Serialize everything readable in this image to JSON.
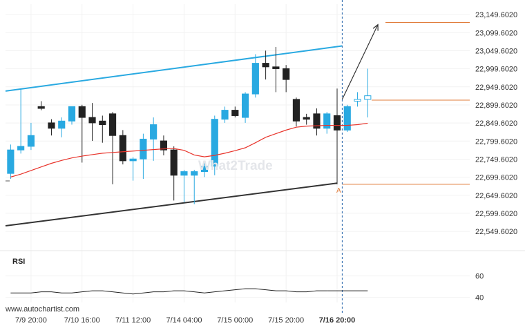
{
  "footer": {
    "source_text": "www.autochartist.com"
  },
  "watermark": {
    "text": "What2Trade"
  },
  "pattern_point_label": "A",
  "rsi_panel": {
    "title": "RSI",
    "levels": [
      "60",
      "40"
    ],
    "values": [
      44,
      44,
      44,
      45,
      45,
      44,
      44,
      45,
      46,
      46,
      45,
      44,
      43,
      44,
      45,
      45,
      46,
      46,
      45,
      44,
      45,
      46,
      47,
      48,
      48,
      47,
      46,
      46,
      45,
      45,
      46,
      46
    ]
  },
  "colors": {
    "bull": "#29a9e1",
    "bear": "#222222",
    "resistance": "#29a9e1",
    "support": "#333333",
    "moving_average": "#e8332a",
    "target": "#e07b39",
    "vertical_marker": "#1f5fa8"
  },
  "chart_data": {
    "type": "candlestick",
    "instrument_price_axis": [
      "23,149.6020",
      "23,099.6020",
      "23,049.6020",
      "22,999.6020",
      "22,949.6020",
      "22,899.6020",
      "22,849.6020",
      "22,799.6020",
      "22,749.6020",
      "22,699.6020",
      "22,649.6020",
      "22,599.6020",
      "22,549.6020"
    ],
    "price_ticks": [
      23149.602,
      23099.602,
      23049.602,
      22999.602,
      22949.602,
      22899.602,
      22849.602,
      22799.602,
      22749.602,
      22699.602,
      22649.602,
      22599.602,
      22549.602
    ],
    "ylim": [
      22509.602,
      23178.602
    ],
    "time_labels": [
      "7/9 20:00",
      "7/10 16:00",
      "7/11 12:00",
      "7/14 04:00",
      "7/15 00:00",
      "7/15 20:00",
      "7/16 20:00"
    ],
    "time_label_bar_index": [
      2,
      7,
      12,
      17,
      22,
      27,
      32
    ],
    "candles": [
      {
        "o": 22710,
        "h": 22790,
        "l": 22695,
        "c": 22775
      },
      {
        "o": 22775,
        "h": 22945,
        "l": 22765,
        "c": 22785
      },
      {
        "o": 22785,
        "h": 22850,
        "l": 22775,
        "c": 22815
      },
      {
        "o": 22895,
        "h": 22910,
        "l": 22885,
        "c": 22890
      },
      {
        "o": 22850,
        "h": 22860,
        "l": 22815,
        "c": 22835
      },
      {
        "o": 22835,
        "h": 22865,
        "l": 22810,
        "c": 22855
      },
      {
        "o": 22855,
        "h": 22895,
        "l": 22845,
        "c": 22895
      },
      {
        "o": 22895,
        "h": 22900,
        "l": 22740,
        "c": 22865
      },
      {
        "o": 22865,
        "h": 22905,
        "l": 22800,
        "c": 22850
      },
      {
        "o": 22855,
        "h": 22870,
        "l": 22795,
        "c": 22845
      },
      {
        "o": 22875,
        "h": 22880,
        "l": 22680,
        "c": 22815
      },
      {
        "o": 22815,
        "h": 22830,
        "l": 22735,
        "c": 22745
      },
      {
        "o": 22745,
        "h": 22755,
        "l": 22690,
        "c": 22750
      },
      {
        "o": 22750,
        "h": 22820,
        "l": 22695,
        "c": 22805
      },
      {
        "o": 22805,
        "h": 22865,
        "l": 22745,
        "c": 22845
      },
      {
        "o": 22800,
        "h": 22815,
        "l": 22760,
        "c": 22775
      },
      {
        "o": 22775,
        "h": 22785,
        "l": 22635,
        "c": 22705
      },
      {
        "o": 22705,
        "h": 22720,
        "l": 22630,
        "c": 22715
      },
      {
        "o": 22705,
        "h": 22720,
        "l": 22625,
        "c": 22715
      },
      {
        "o": 22715,
        "h": 22745,
        "l": 22700,
        "c": 22730
      },
      {
        "o": 22730,
        "h": 22870,
        "l": 22705,
        "c": 22860
      },
      {
        "o": 22860,
        "h": 22895,
        "l": 22850,
        "c": 22885
      },
      {
        "o": 22885,
        "h": 22895,
        "l": 22865,
        "c": 22870
      },
      {
        "o": 22865,
        "h": 22935,
        "l": 22850,
        "c": 22930
      },
      {
        "o": 22930,
        "h": 23040,
        "l": 22920,
        "c": 23015
      },
      {
        "o": 23015,
        "h": 23050,
        "l": 22970,
        "c": 23005
      },
      {
        "o": 23005,
        "h": 23060,
        "l": 22935,
        "c": 23000
      },
      {
        "o": 23000,
        "h": 23010,
        "l": 22935,
        "c": 22970
      },
      {
        "o": 22915,
        "h": 22920,
        "l": 22840,
        "c": 22855
      },
      {
        "o": 22865,
        "h": 22875,
        "l": 22845,
        "c": 22860
      },
      {
        "o": 22875,
        "h": 22890,
        "l": 22815,
        "c": 22835
      },
      {
        "o": 22835,
        "h": 22880,
        "l": 22820,
        "c": 22875
      },
      {
        "o": 22870,
        "h": 22945,
        "l": 22680,
        "c": 22830
      },
      {
        "o": 22830,
        "h": 22900,
        "l": 22825,
        "c": 22895
      },
      {
        "o": 22910,
        "h": 22935,
        "l": 22895,
        "c": 22915
      },
      {
        "o": 22915,
        "h": 23000,
        "l": 22865,
        "c": 22925
      }
    ],
    "forecast_candle_indices": [
      34,
      35
    ],
    "moving_average": [
      22700,
      22708,
      22718,
      22728,
      22738,
      22746,
      22753,
      22758,
      22762,
      22766,
      22768,
      22770,
      22772,
      22774,
      22776,
      22778,
      22779,
      22774,
      22761,
      22756,
      22760,
      22766,
      22773,
      22781,
      22795,
      22810,
      22820,
      22830,
      22838,
      22841,
      22842,
      22843,
      22843,
      22843,
      22845,
      22849
    ],
    "resistance_line": [
      [
        -0.5,
        22938
      ],
      [
        32.5,
        23063
      ]
    ],
    "support_line": [
      [
        -0.5,
        22565
      ],
      [
        32,
        22683
      ]
    ],
    "target_level": 23128,
    "current_level": 22913,
    "breakout_level": 22680,
    "projection_arrow": [
      [
        32.5,
        22915
      ],
      [
        36,
        23122
      ]
    ],
    "vertical_marker_index": 32.5,
    "xlim": [
      -0.5,
      45
    ]
  }
}
